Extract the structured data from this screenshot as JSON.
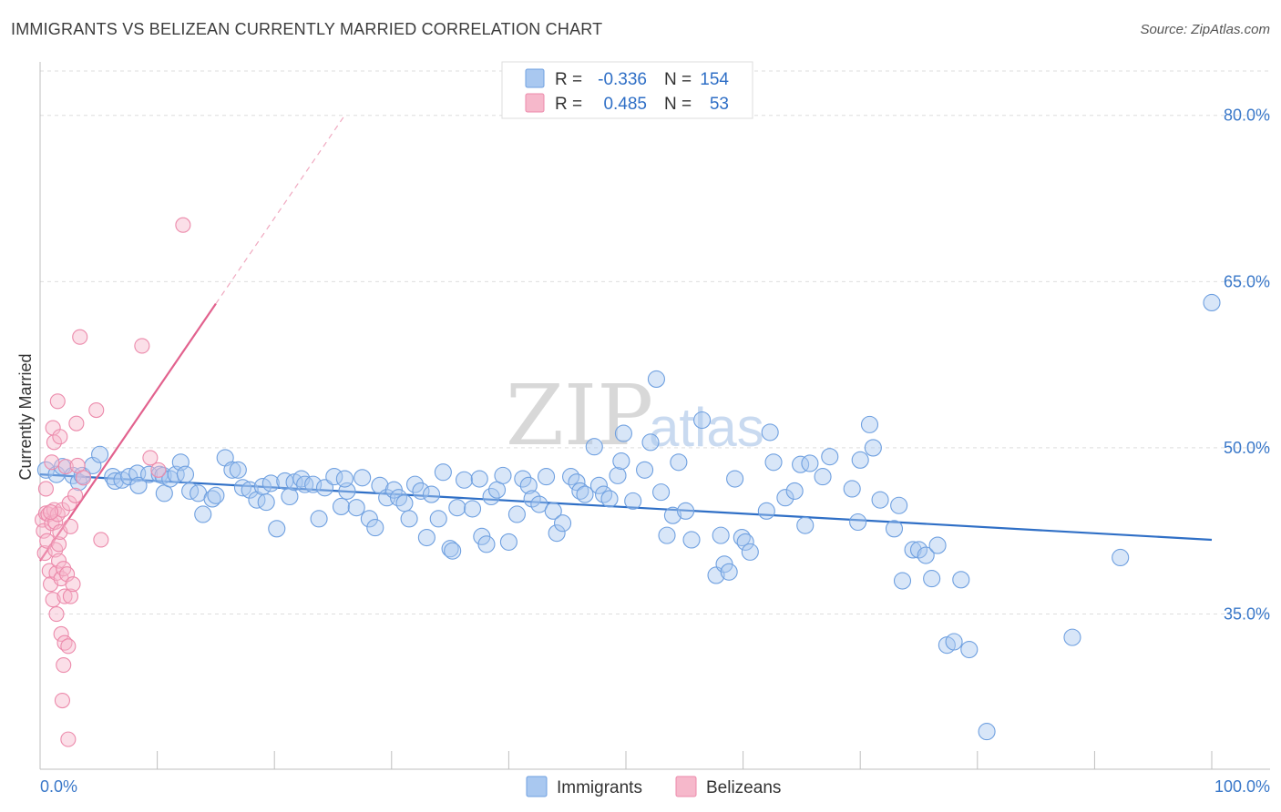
{
  "title": "IMMIGRANTS VS BELIZEAN CURRENTLY MARRIED CORRELATION CHART",
  "source": "Source: ZipAtlas.com",
  "watermark": {
    "zip": "ZIP",
    "atlas": "atlas"
  },
  "legend_box": {
    "rows": [
      {
        "r_label": "R =",
        "r_value": "-0.336",
        "n_label": "N =",
        "n_value": "154"
      },
      {
        "r_label": "R =",
        "r_value": "0.485",
        "n_label": "N =",
        "n_value": "53"
      }
    ]
  },
  "bottom_legend": [
    "Immigrants",
    "Belizeans"
  ],
  "colors": {
    "immigrants_fill": "#a9c8f0",
    "immigrants_stroke": "#6fa0e0",
    "immigrants_line": "#2f6fc6",
    "belizeans_fill": "#f6b8cb",
    "belizeans_stroke": "#ec8aab",
    "belizeans_line": "#e2628e",
    "axis_label": "#3a78c9"
  },
  "chart_data": {
    "type": "scatter",
    "title": "IMMIGRANTS VS BELIZEAN CURRENTLY MARRIED CORRELATION CHART",
    "xlabel": "",
    "ylabel": "Currently Married",
    "xlim": [
      0,
      100
    ],
    "ylim": [
      21.0,
      84.0
    ],
    "x_tick_labels": [
      "0.0%",
      "100.0%"
    ],
    "y_ticks": [
      35.0,
      50.0,
      65.0,
      80.0
    ],
    "y_tick_labels": [
      "35.0%",
      "50.0%",
      "65.0%",
      "80.0%"
    ],
    "grid": true,
    "series": [
      {
        "name": "Immigrants",
        "R": -0.336,
        "N": 154,
        "trend": {
          "x": [
            0,
            100
          ],
          "y": [
            47.6,
            41.7
          ],
          "style": "solid"
        },
        "points": [
          [
            0.5,
            48.0
          ],
          [
            1.4,
            47.6
          ],
          [
            1.9,
            48.3
          ],
          [
            2.8,
            47.5
          ],
          [
            3.3,
            46.9
          ],
          [
            3.6,
            47.5
          ],
          [
            4.5,
            48.4
          ],
          [
            5.1,
            49.4
          ],
          [
            6.2,
            47.4
          ],
          [
            6.4,
            47.0
          ],
          [
            7.0,
            47.1
          ],
          [
            7.6,
            47.4
          ],
          [
            8.3,
            47.7
          ],
          [
            8.4,
            46.6
          ],
          [
            9.3,
            47.6
          ],
          [
            10.2,
            47.6
          ],
          [
            10.5,
            47.5
          ],
          [
            10.6,
            45.9
          ],
          [
            11.1,
            47.2
          ],
          [
            11.6,
            47.6
          ],
          [
            12.0,
            48.7
          ],
          [
            12.4,
            47.6
          ],
          [
            12.8,
            46.1
          ],
          [
            13.5,
            45.9
          ],
          [
            13.9,
            44.0
          ],
          [
            14.7,
            45.4
          ],
          [
            15.0,
            45.7
          ],
          [
            15.8,
            49.1
          ],
          [
            16.4,
            48.0
          ],
          [
            16.9,
            48.0
          ],
          [
            17.3,
            46.4
          ],
          [
            17.9,
            46.2
          ],
          [
            18.5,
            45.3
          ],
          [
            19.0,
            46.5
          ],
          [
            19.3,
            45.1
          ],
          [
            19.7,
            46.8
          ],
          [
            20.2,
            42.7
          ],
          [
            20.9,
            47.0
          ],
          [
            21.3,
            45.6
          ],
          [
            21.7,
            46.9
          ],
          [
            22.3,
            47.2
          ],
          [
            22.6,
            46.7
          ],
          [
            23.3,
            46.7
          ],
          [
            23.8,
            43.6
          ],
          [
            24.3,
            46.4
          ],
          [
            25.1,
            47.4
          ],
          [
            25.7,
            44.7
          ],
          [
            26.2,
            46.1
          ],
          [
            27.0,
            44.6
          ],
          [
            27.5,
            47.3
          ],
          [
            28.1,
            43.6
          ],
          [
            28.6,
            42.8
          ],
          [
            29.0,
            46.6
          ],
          [
            29.6,
            45.5
          ],
          [
            30.2,
            46.2
          ],
          [
            30.6,
            45.5
          ],
          [
            31.1,
            45.0
          ],
          [
            31.5,
            43.6
          ],
          [
            32.0,
            46.7
          ],
          [
            32.5,
            46.1
          ],
          [
            33.0,
            41.9
          ],
          [
            33.4,
            45.8
          ],
          [
            34.0,
            43.6
          ],
          [
            34.4,
            47.8
          ],
          [
            35.0,
            40.9
          ],
          [
            35.2,
            40.7
          ],
          [
            35.6,
            44.6
          ],
          [
            36.2,
            47.1
          ],
          [
            36.9,
            44.5
          ],
          [
            37.7,
            42.0
          ],
          [
            38.1,
            41.3
          ],
          [
            38.5,
            45.6
          ],
          [
            39.0,
            46.2
          ],
          [
            39.5,
            47.5
          ],
          [
            40.0,
            41.5
          ],
          [
            40.7,
            44.0
          ],
          [
            41.2,
            47.2
          ],
          [
            41.7,
            46.6
          ],
          [
            42.0,
            45.4
          ],
          [
            42.6,
            44.9
          ],
          [
            43.2,
            47.4
          ],
          [
            43.8,
            44.3
          ],
          [
            44.1,
            42.3
          ],
          [
            44.6,
            43.2
          ],
          [
            45.3,
            47.4
          ],
          [
            45.8,
            46.9
          ],
          [
            46.1,
            46.1
          ],
          [
            46.5,
            45.8
          ],
          [
            47.3,
            50.1
          ],
          [
            47.7,
            46.6
          ],
          [
            48.1,
            45.8
          ],
          [
            48.6,
            45.4
          ],
          [
            49.3,
            47.5
          ],
          [
            49.6,
            48.8
          ],
          [
            49.8,
            51.3
          ],
          [
            50.6,
            45.2
          ],
          [
            51.6,
            48.0
          ],
          [
            52.1,
            50.5
          ],
          [
            52.6,
            56.2
          ],
          [
            53.0,
            46.0
          ],
          [
            53.5,
            42.1
          ],
          [
            54.0,
            43.9
          ],
          [
            54.5,
            48.7
          ],
          [
            55.1,
            44.3
          ],
          [
            55.6,
            41.7
          ],
          [
            56.5,
            52.5
          ],
          [
            57.7,
            38.5
          ],
          [
            58.1,
            42.1
          ],
          [
            58.4,
            39.5
          ],
          [
            58.8,
            38.8
          ],
          [
            59.3,
            47.2
          ],
          [
            59.9,
            41.9
          ],
          [
            60.2,
            41.5
          ],
          [
            60.6,
            40.6
          ],
          [
            62.0,
            44.3
          ],
          [
            62.3,
            51.4
          ],
          [
            62.6,
            48.7
          ],
          [
            63.6,
            45.5
          ],
          [
            64.4,
            46.1
          ],
          [
            64.9,
            48.5
          ],
          [
            65.3,
            43.0
          ],
          [
            65.7,
            48.6
          ],
          [
            66.8,
            47.4
          ],
          [
            67.4,
            49.2
          ],
          [
            69.3,
            46.3
          ],
          [
            69.8,
            43.3
          ],
          [
            70.0,
            48.9
          ],
          [
            70.8,
            52.1
          ],
          [
            71.1,
            50.0
          ],
          [
            71.7,
            45.3
          ],
          [
            72.9,
            42.7
          ],
          [
            73.3,
            44.8
          ],
          [
            73.6,
            38.0
          ],
          [
            74.5,
            40.8
          ],
          [
            75.0,
            40.8
          ],
          [
            75.6,
            40.3
          ],
          [
            76.1,
            38.2
          ],
          [
            76.6,
            41.2
          ],
          [
            77.4,
            32.2
          ],
          [
            78.0,
            32.5
          ],
          [
            78.6,
            38.1
          ],
          [
            79.3,
            31.8
          ],
          [
            80.8,
            24.4
          ],
          [
            88.1,
            32.9
          ],
          [
            92.2,
            40.1
          ],
          [
            100.0,
            63.1
          ],
          [
            26.0,
            47.2
          ],
          [
            37.5,
            47.2
          ]
        ]
      },
      {
        "name": "Belizeans",
        "R": 0.485,
        "N": 53,
        "trend": {
          "x": [
            0,
            15
          ],
          "y": [
            39.8,
            63.0
          ],
          "style": "solid",
          "dashed_extension": {
            "x": [
              15,
              26
            ],
            "y": [
              63.0,
              80.0
            ]
          }
        },
        "points": [
          [
            0.2,
            43.5
          ],
          [
            0.3,
            42.5
          ],
          [
            0.4,
            40.5
          ],
          [
            0.5,
            46.3
          ],
          [
            0.5,
            44.1
          ],
          [
            0.6,
            41.6
          ],
          [
            0.7,
            44.0
          ],
          [
            0.8,
            38.9
          ],
          [
            0.9,
            37.7
          ],
          [
            1.0,
            48.7
          ],
          [
            1.0,
            43.2
          ],
          [
            1.1,
            51.8
          ],
          [
            1.1,
            36.3
          ],
          [
            1.2,
            50.5
          ],
          [
            1.2,
            44.4
          ],
          [
            1.3,
            43.3
          ],
          [
            1.3,
            40.8
          ],
          [
            1.4,
            38.7
          ],
          [
            1.4,
            35.0
          ],
          [
            1.5,
            54.2
          ],
          [
            1.5,
            44.0
          ],
          [
            1.6,
            41.3
          ],
          [
            1.6,
            39.8
          ],
          [
            1.7,
            51.0
          ],
          [
            1.8,
            38.2
          ],
          [
            1.8,
            33.2
          ],
          [
            1.9,
            44.4
          ],
          [
            1.9,
            27.2
          ],
          [
            2.0,
            39.1
          ],
          [
            2.0,
            30.4
          ],
          [
            2.1,
            36.6
          ],
          [
            2.1,
            32.4
          ],
          [
            2.2,
            48.3
          ],
          [
            2.3,
            38.6
          ],
          [
            2.4,
            23.7
          ],
          [
            2.4,
            32.1
          ],
          [
            2.5,
            45.0
          ],
          [
            2.6,
            36.6
          ],
          [
            2.8,
            37.7
          ],
          [
            3.0,
            45.7
          ],
          [
            3.1,
            52.2
          ],
          [
            3.2,
            48.4
          ],
          [
            3.4,
            60.0
          ],
          [
            3.7,
            47.3
          ],
          [
            4.8,
            53.4
          ],
          [
            5.2,
            41.7
          ],
          [
            8.7,
            59.2
          ],
          [
            9.4,
            49.1
          ],
          [
            12.2,
            70.1
          ],
          [
            10.1,
            48.0
          ],
          [
            0.9,
            44.2
          ],
          [
            1.7,
            42.4
          ],
          [
            2.6,
            42.9
          ]
        ]
      }
    ]
  }
}
